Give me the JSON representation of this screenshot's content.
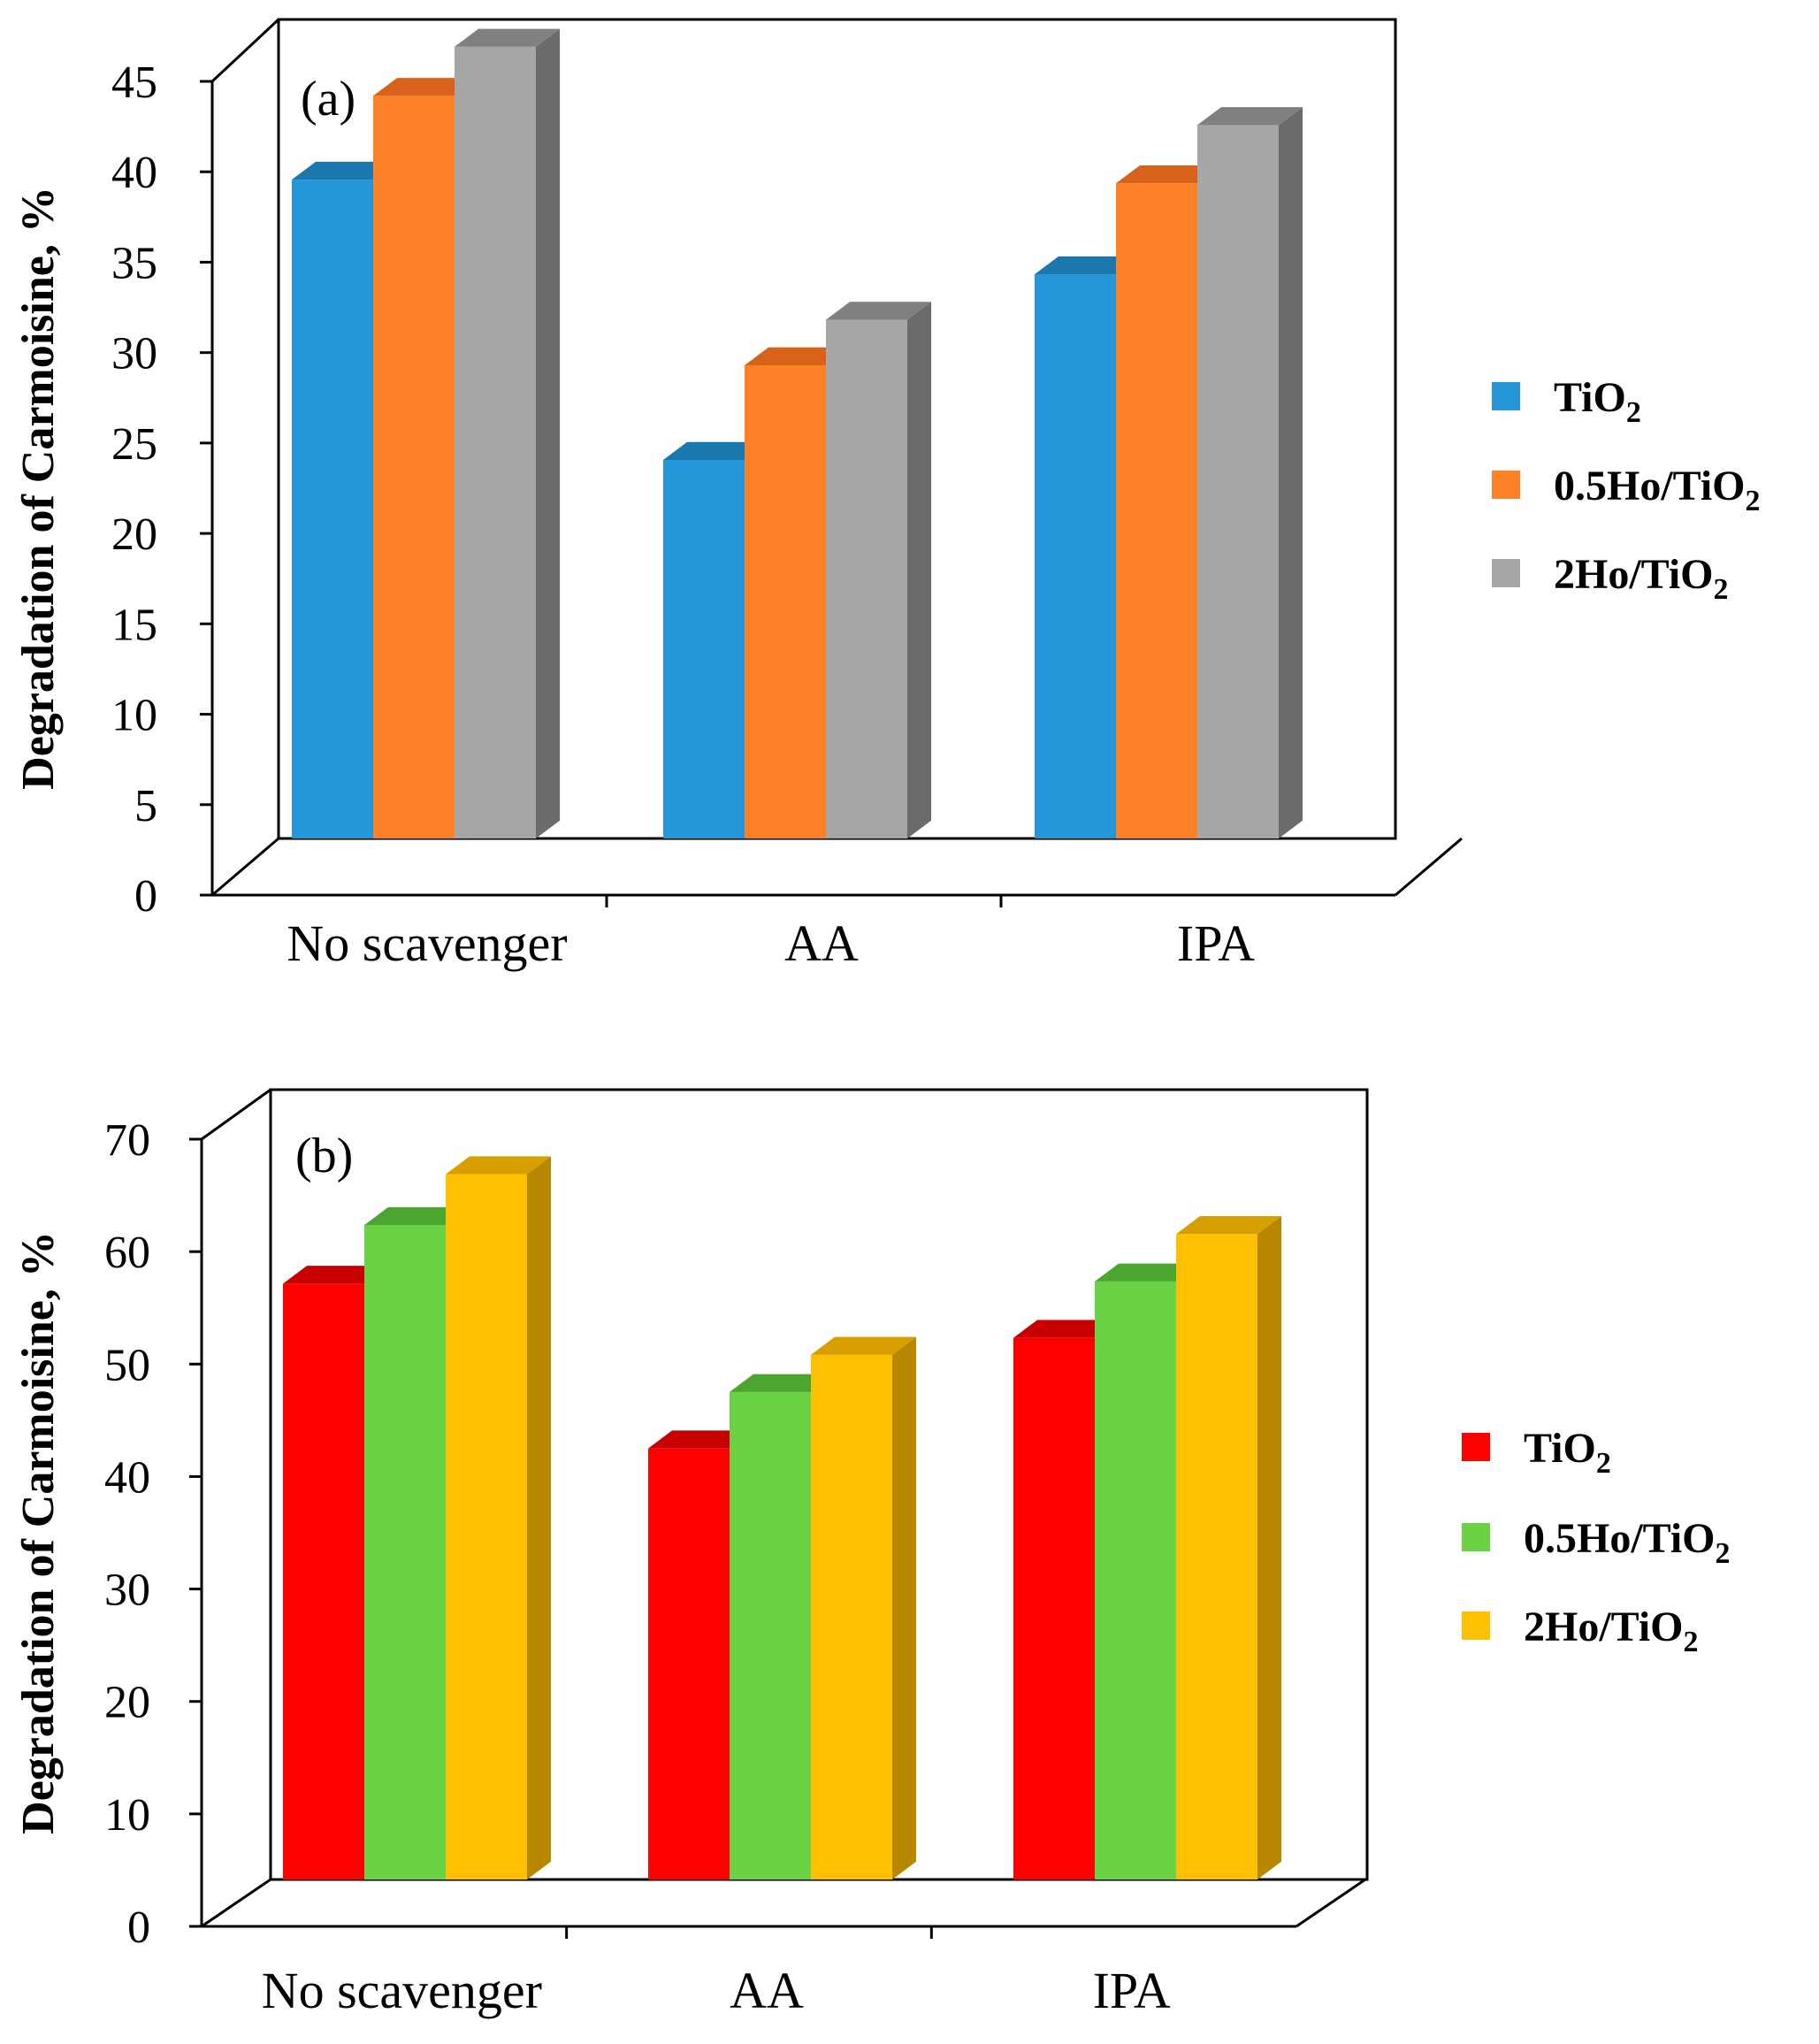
{
  "chart_data": [
    {
      "type": "bar",
      "panel": "(a)",
      "categories": [
        "No scavenger",
        "AA",
        "IPA"
      ],
      "ylabel": "Degradation of Carmoisine, %",
      "xlabel": "",
      "ylim": [
        0,
        45
      ],
      "yticks": [
        0,
        5,
        10,
        15,
        20,
        25,
        30,
        35,
        40,
        45
      ],
      "grid": false,
      "legend_position": "right",
      "series": [
        {
          "name_main": "TiO",
          "name_sub": "2",
          "color": "#2596d8",
          "top_color": "#1b78ad",
          "values": [
            36.2,
            20.8,
            31.0
          ]
        },
        {
          "name_main": "0.5Ho/TiO",
          "name_sub": "2",
          "color": "#fd8127",
          "top_color": "#d9621a",
          "values": [
            40.8,
            26.0,
            36.0
          ]
        },
        {
          "name_main": "2Ho/TiO",
          "name_sub": "2",
          "color": "#a6a6a6",
          "top_color": "#808080",
          "side_color": "#6b6b6b",
          "values": [
            43.5,
            28.5,
            39.2
          ]
        }
      ]
    },
    {
      "type": "bar",
      "panel": "(b)",
      "categories": [
        "No scavenger",
        "AA",
        "IPA"
      ],
      "ylabel": "Degradation of Carmoisine, %",
      "xlabel": "",
      "ylim": [
        0,
        70
      ],
      "yticks": [
        0,
        10,
        20,
        30,
        40,
        50,
        60,
        70
      ],
      "grid": false,
      "legend_position": "right",
      "series": [
        {
          "name_main": "TiO",
          "name_sub": "2",
          "color": "#fe0000",
          "top_color": "#c80000",
          "values": [
            52.8,
            38.2,
            48.0
          ]
        },
        {
          "name_main": "0.5Ho/TiO",
          "name_sub": "2",
          "color": "#6ad244",
          "top_color": "#4ca52e",
          "values": [
            58.0,
            43.2,
            53.0
          ]
        },
        {
          "name_main": "2Ho/TiO",
          "name_sub": "2",
          "color": "#fec000",
          "top_color": "#d89f00",
          "side_color": "#b88700",
          "values": [
            62.5,
            46.5,
            57.2
          ]
        }
      ]
    }
  ]
}
